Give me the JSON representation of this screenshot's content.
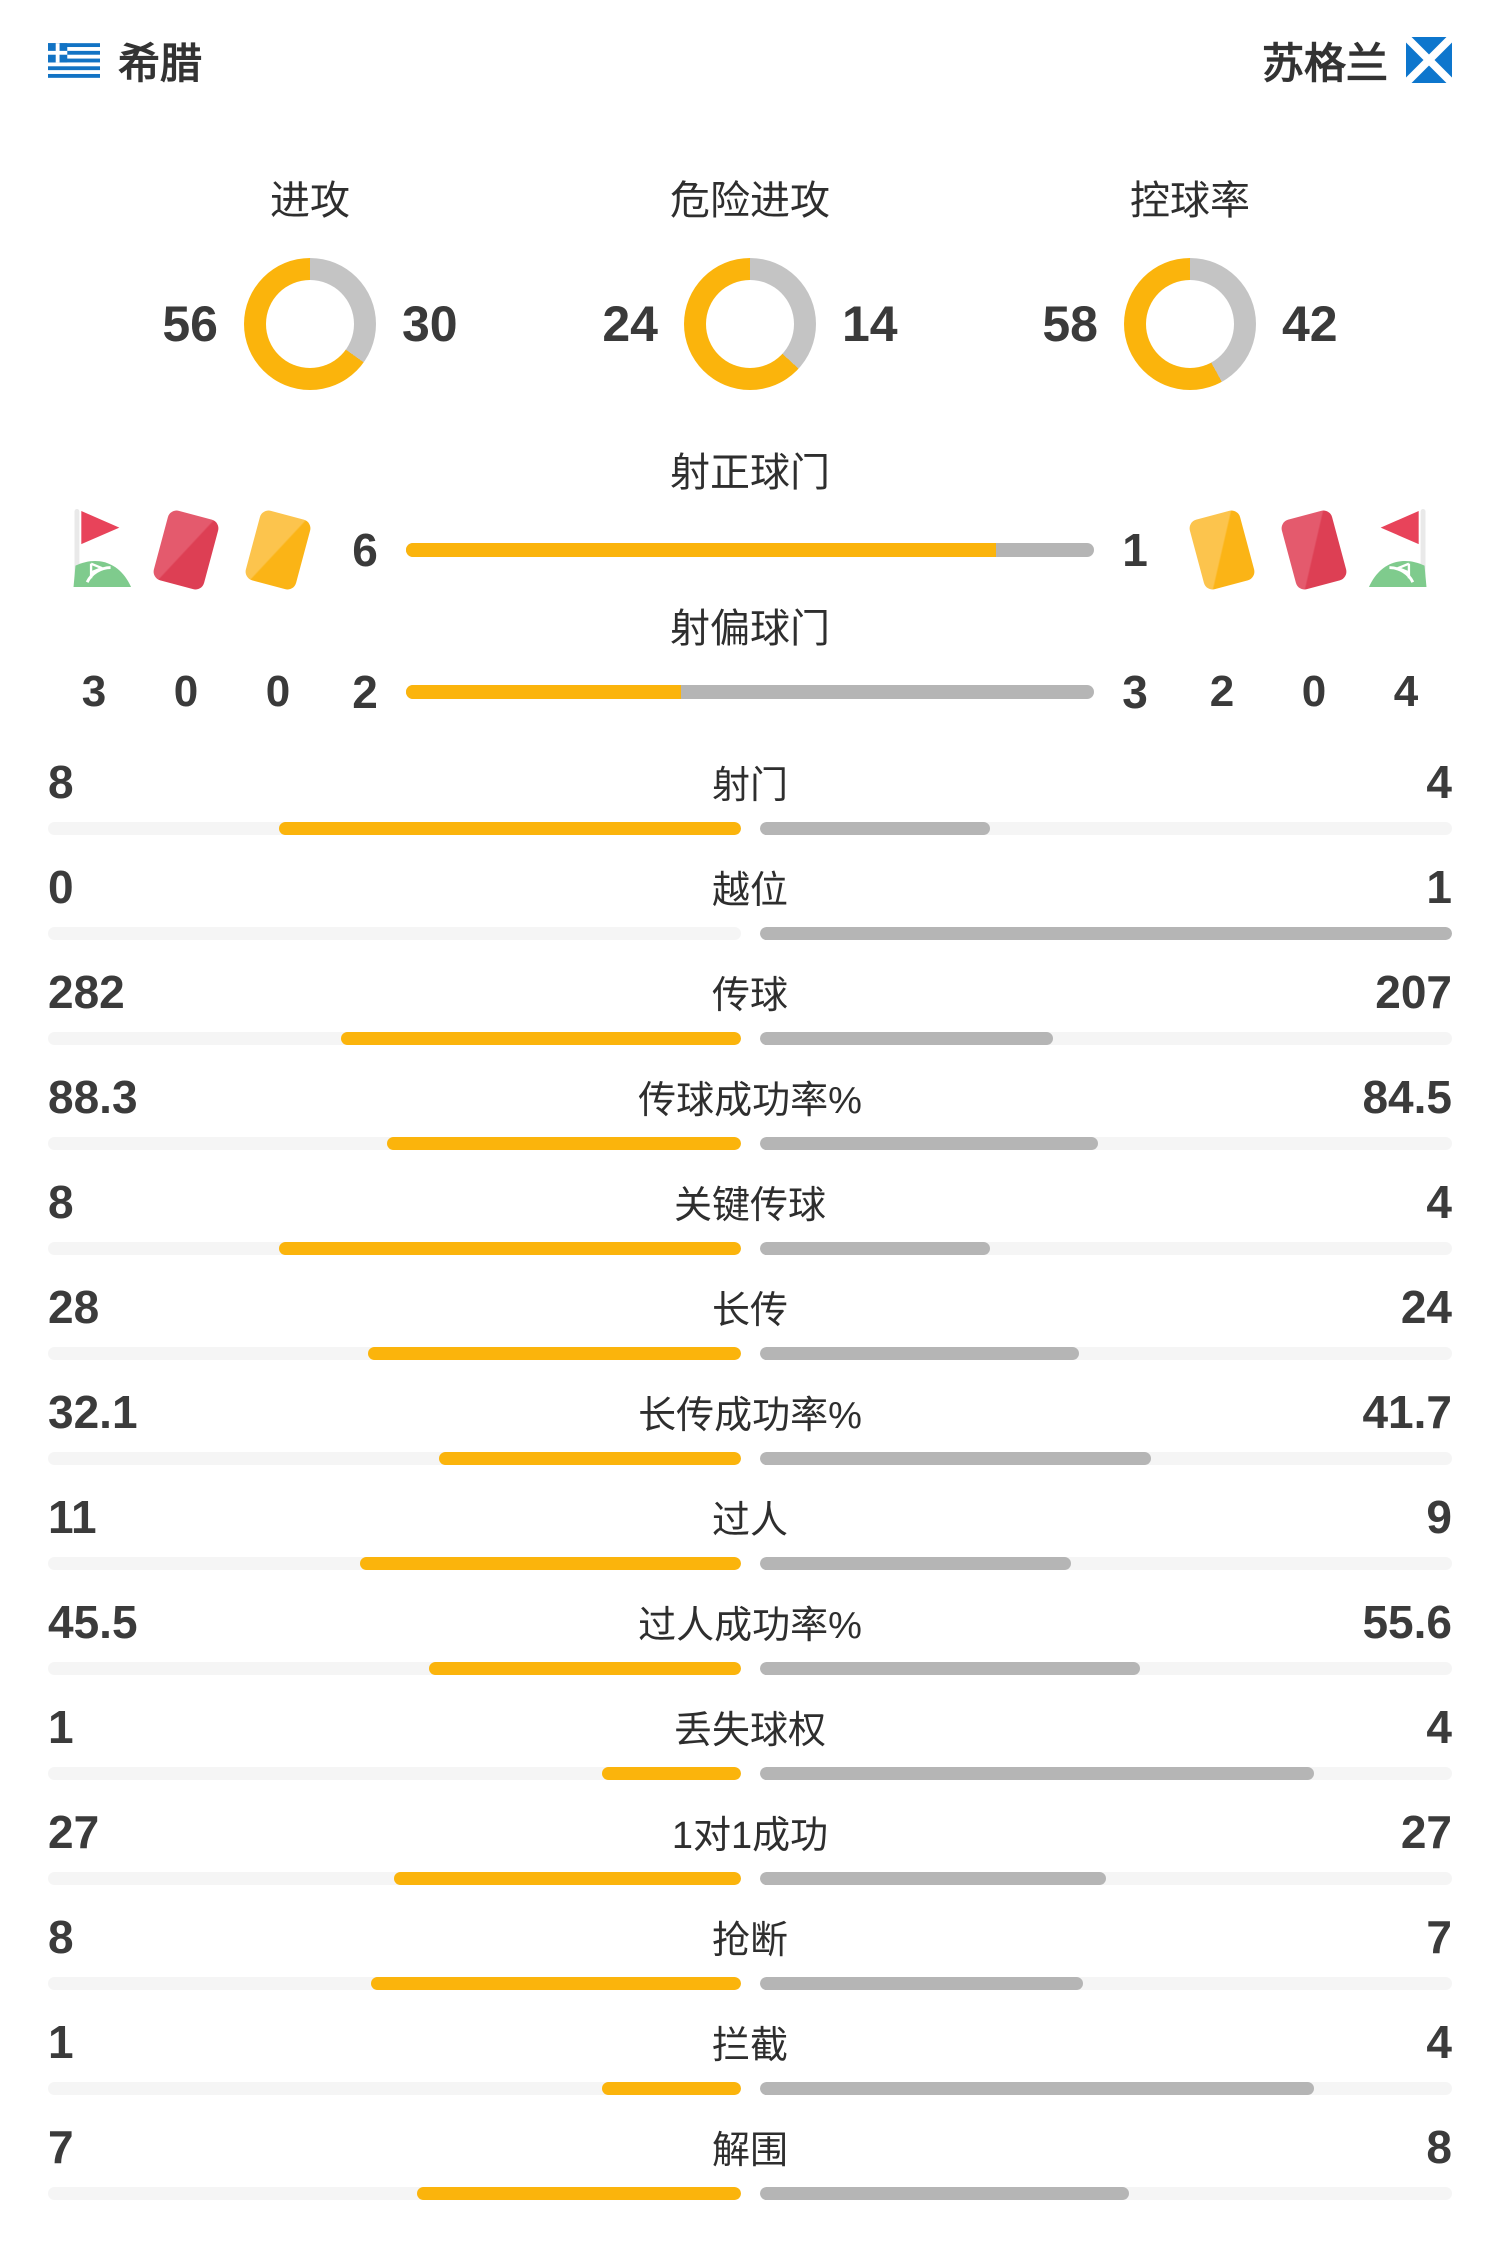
{
  "header": {
    "home_name": "希腊",
    "away_name": "苏格兰"
  },
  "donuts": [
    {
      "label": "进攻",
      "home": "56",
      "away": "30"
    },
    {
      "label": "危险进攻",
      "home": "24",
      "away": "14"
    },
    {
      "label": "控球率",
      "home": "58",
      "away": "42"
    }
  ],
  "shot_rows": [
    {
      "label": "射正球门",
      "home": "6",
      "away": "1"
    },
    {
      "label": "射偏球门",
      "home": "2",
      "away": "3"
    }
  ],
  "cards_corners": {
    "home": {
      "corner": "3",
      "red": "0",
      "yellow": "0"
    },
    "away": {
      "yellow": "2",
      "red": "0",
      "corner": "4"
    }
  },
  "stats": [
    {
      "label": "射门",
      "home": "8",
      "away": "4"
    },
    {
      "label": "越位",
      "home": "0",
      "away": "1"
    },
    {
      "label": "传球",
      "home": "282",
      "away": "207"
    },
    {
      "label": "传球成功率%",
      "home": "88.3",
      "away": "84.5"
    },
    {
      "label": "关键传球",
      "home": "8",
      "away": "4"
    },
    {
      "label": "长传",
      "home": "28",
      "away": "24"
    },
    {
      "label": "长传成功率%",
      "home": "32.1",
      "away": "41.7"
    },
    {
      "label": "过人",
      "home": "11",
      "away": "9"
    },
    {
      "label": "过人成功率%",
      "home": "45.5",
      "away": "55.6"
    },
    {
      "label": "丢失球权",
      "home": "1",
      "away": "4"
    },
    {
      "label": "1对1成功",
      "home": "27",
      "away": "27"
    },
    {
      "label": "抢断",
      "home": "8",
      "away": "7"
    },
    {
      "label": "拦截",
      "home": "1",
      "away": "4"
    },
    {
      "label": "解围",
      "home": "7",
      "away": "8"
    }
  ],
  "colors": {
    "home_fill": "#fbb40c",
    "away_fill": "#b5b5b5",
    "donut_away": "#c4c4c4",
    "bar_track": "#f5f5f5"
  }
}
